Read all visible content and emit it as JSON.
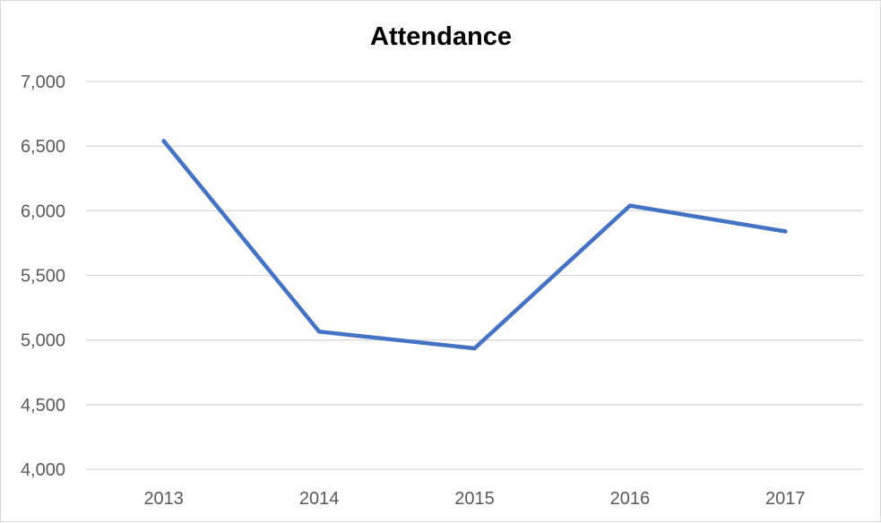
{
  "chart_data": {
    "type": "line",
    "title": "Attendance",
    "xlabel": "",
    "ylabel": "",
    "categories": [
      "2013",
      "2014",
      "2015",
      "2016",
      "2017"
    ],
    "series": [
      {
        "values": [
          6540,
          5065,
          4935,
          6040,
          5840
        ],
        "color": "#4472c4"
      }
    ],
    "ylim": [
      4000,
      7000
    ],
    "yticks": [
      4000,
      4500,
      5000,
      5500,
      6000,
      6500,
      7000
    ],
    "ytick_labels": [
      "4,000",
      "4,500",
      "5,000",
      "5,500",
      "6,000",
      "6,500",
      "7,000"
    ],
    "grid": true,
    "legend": "none",
    "gridline_color": "#d9d9d9"
  }
}
